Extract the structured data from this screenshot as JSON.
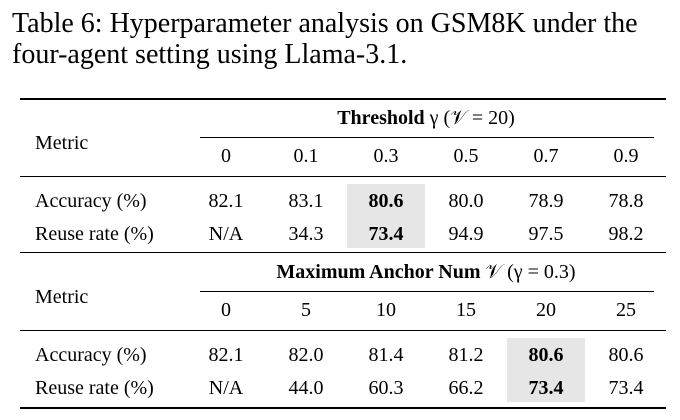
{
  "caption": "Table 6: Hyperparameter analysis on GSM8K under the four-agent setting using Llama-3.1.",
  "sections": [
    {
      "title_bold": "Threshold",
      "title_rest": "γ (𝒱 = 20)",
      "metric": "Metric",
      "columns": [
        "0",
        "0.1",
        "0.3",
        "0.5",
        "0.7",
        "0.9"
      ],
      "rows": [
        [
          "Accuracy (%)",
          "82.1",
          "83.1",
          "80.6",
          "80.0",
          "78.9",
          "78.8"
        ],
        [
          "Reuse rate (%)",
          "N/A",
          "34.3",
          "73.4",
          "94.9",
          "97.5",
          "98.2"
        ]
      ],
      "highlight": 2
    },
    {
      "title_bold": "Maximum Anchor Num",
      "title_rest": "𝒱 (γ = 0.3)",
      "metric": "Metric",
      "columns": [
        "0",
        "5",
        "10",
        "15",
        "20",
        "25"
      ],
      "rows": [
        [
          "Accuracy (%)",
          "82.1",
          "82.0",
          "81.4",
          "81.2",
          "80.6",
          "80.6"
        ],
        [
          "Reuse rate (%)",
          "N/A",
          "44.0",
          "60.3",
          "66.2",
          "73.4",
          "73.4"
        ]
      ],
      "highlight": 4
    }
  ]
}
